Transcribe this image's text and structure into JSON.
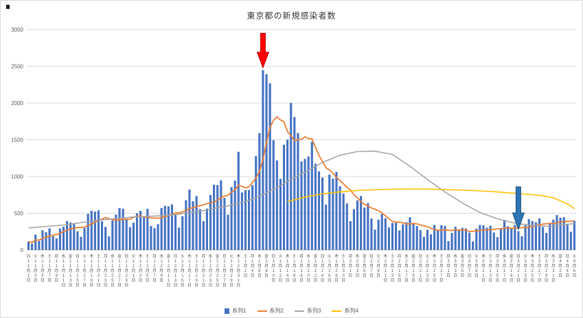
{
  "chart_data": {
    "type": "bar",
    "title": "東京都の新規感染者数",
    "xlabel": "",
    "ylabel": "",
    "ylim": [
      0,
      3000
    ],
    "yticks": [
      0,
      500,
      1000,
      1500,
      2000,
      2500,
      3000
    ],
    "grid": true,
    "legend_position": "bottom",
    "x_axis": {
      "start_weekday": "日",
      "weekdays": [
        "日",
        "月",
        "火",
        "水",
        "木",
        "金",
        "土"
      ],
      "months": [
        {
          "month": 11,
          "days": 30
        },
        {
          "month": 12,
          "days": 31
        },
        {
          "month": 1,
          "days": 31
        },
        {
          "month": 2,
          "days": 28
        },
        {
          "month": 3,
          "days": 31
        },
        {
          "month": 4,
          "days": 6
        }
      ],
      "tick_every_days": 2,
      "date_format": "{m}月{d}日"
    },
    "series": [
      {
        "name": "系列1",
        "type": "bar",
        "color": "#4472C4",
        "values": [
          116,
          87,
          209,
          122,
          269,
          242,
          294,
          189,
          157,
          293,
          317,
          393,
          374,
          352,
          255,
          180,
          298,
          493,
          534,
          522,
          539,
          391,
          314,
          186,
          401,
          481,
          570,
          561,
          418,
          311,
          372,
          500,
          533,
          449,
          561,
          327,
          299,
          352,
          572,
          602,
          595,
          621,
          480,
          305,
          460,
          678,
          822,
          664,
          736,
          556,
          392,
          563,
          748,
          888,
          884,
          949,
          708,
          481,
          856,
          944,
          1337,
          783,
          814,
          816,
          884,
          1278,
          1591,
          2447,
          2392,
          2268,
          1494,
          1219,
          970,
          1433,
          1502,
          2001,
          1809,
          1592,
          1204,
          1240,
          1274,
          1471,
          1175,
          1070,
          986,
          618,
          1026,
          973,
          1064,
          868,
          769,
          633,
          393,
          556,
          676,
          734,
          577,
          639,
          429,
          276,
          412,
          491,
          434,
          307,
          369,
          371,
          266,
          350,
          378,
          445,
          353,
          327,
          272,
          178,
          275,
          213,
          340,
          270,
          337,
          329,
          121,
          232,
          316,
          279,
          301,
          293,
          237,
          116,
          290,
          340,
          335,
          304,
          330,
          239,
          175,
          300,
          409,
          323,
          303,
          342,
          256,
          187,
          337,
          420,
          394,
          376,
          430,
          313,
          234,
          364,
          414,
          475,
          440,
          446,
          355,
          249,
          399
        ]
      },
      {
        "name": "系列2",
        "type": "line",
        "color": "#ED7D31",
        "derivation": "7-day trailing moving average of 系列1"
      },
      {
        "name": "系列3",
        "type": "line",
        "color": "#A5A5A5",
        "points": [
          [
            0,
            300
          ],
          [
            10,
            340
          ],
          [
            20,
            405
          ],
          [
            30,
            450
          ],
          [
            40,
            470
          ],
          [
            50,
            535
          ],
          [
            57,
            600
          ],
          [
            64,
            690
          ],
          [
            69,
            800
          ],
          [
            74,
            930
          ],
          [
            79,
            1060
          ],
          [
            84,
            1190
          ],
          [
            89,
            1290
          ],
          [
            94,
            1340
          ],
          [
            99,
            1345
          ],
          [
            104,
            1300
          ],
          [
            109,
            1140
          ],
          [
            114,
            960
          ],
          [
            119,
            790
          ],
          [
            124,
            640
          ],
          [
            129,
            510
          ],
          [
            134,
            425
          ],
          [
            139,
            365
          ],
          [
            144,
            335
          ],
          [
            149,
            320
          ],
          [
            156,
            360
          ]
        ]
      },
      {
        "name": "系列4",
        "type": "line",
        "color": "#FFC000",
        "points": [
          [
            74,
            660
          ],
          [
            79,
            720
          ],
          [
            84,
            765
          ],
          [
            89,
            790
          ],
          [
            94,
            810
          ],
          [
            99,
            820
          ],
          [
            104,
            828
          ],
          [
            109,
            830
          ],
          [
            114,
            830
          ],
          [
            119,
            822
          ],
          [
            124,
            815
          ],
          [
            129,
            805
          ],
          [
            134,
            790
          ],
          [
            139,
            772
          ],
          [
            142,
            760
          ],
          [
            146,
            745
          ],
          [
            150,
            710
          ],
          [
            153,
            650
          ],
          [
            155,
            600
          ],
          [
            156,
            560
          ]
        ]
      }
    ],
    "annotations": [
      {
        "name": "red-down-arrow",
        "shape": "block-arrow-down",
        "color": "#FF0000",
        "stroke": "#C00000",
        "day_index": 67,
        "from_value": 2950,
        "to_value": 2480
      },
      {
        "name": "blue-down-arrow",
        "shape": "block-arrow-down",
        "color": "#2E75B6",
        "stroke": "#1F4E79",
        "day_index": 140,
        "from_value": 860,
        "to_value": 280
      }
    ],
    "axis_colors": {
      "gridline": "#D9D9D9",
      "axis_line": "#BFBFBF",
      "tick_label": "#595959"
    }
  }
}
